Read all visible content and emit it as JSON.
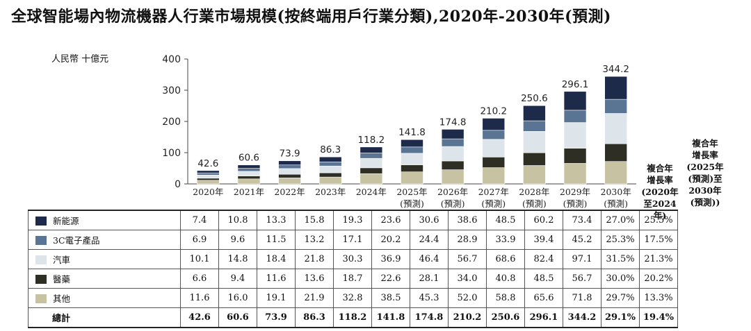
{
  "title": "全球智能場內物流機器人行業市場規模(按終端用戶行業分類),2020年-2030年(預測)",
  "unit": "人民幣 十億元",
  "colors": {
    "新能源": "#1e2a4a",
    "3C電子產品": "#5a7494",
    "汽車": "#dde4ea",
    "醫藥": "#2e2e24",
    "其他": "#c6c2a2"
  },
  "chart_data": {
    "type": "bar",
    "stacked": true,
    "categories": [
      {
        "year": "2020年",
        "note": ""
      },
      {
        "year": "2021年",
        "note": ""
      },
      {
        "year": "2022年",
        "note": ""
      },
      {
        "year": "2023年",
        "note": ""
      },
      {
        "year": "2024年",
        "note": ""
      },
      {
        "year": "2025年",
        "note": "(預測)"
      },
      {
        "year": "2026年",
        "note": "(預測)"
      },
      {
        "year": "2027年",
        "note": "(預測)"
      },
      {
        "year": "2028年",
        "note": "(預測)"
      },
      {
        "year": "2029年",
        "note": "(預測)"
      },
      {
        "year": "2030年",
        "note": "(預測)"
      }
    ],
    "series": [
      {
        "name": "其他",
        "values": [
          11.6,
          16.0,
          19.1,
          21.9,
          32.8,
          38.5,
          45.3,
          52.0,
          58.8,
          65.6,
          71.8
        ]
      },
      {
        "name": "醫藥",
        "values": [
          6.6,
          9.4,
          11.6,
          13.6,
          18.7,
          22.6,
          28.1,
          34.0,
          40.8,
          48.5,
          56.7
        ]
      },
      {
        "name": "汽車",
        "values": [
          10.1,
          14.8,
          18.4,
          21.8,
          30.3,
          36.9,
          46.4,
          56.7,
          68.6,
          82.4,
          97.1
        ]
      },
      {
        "name": "3C電子產品",
        "values": [
          6.9,
          9.6,
          11.5,
          13.2,
          17.1,
          20.2,
          24.4,
          28.9,
          33.9,
          39.4,
          45.2
        ]
      },
      {
        "name": "新能源",
        "values": [
          7.4,
          10.8,
          13.3,
          15.8,
          19.3,
          23.6,
          30.6,
          38.6,
          48.5,
          60.2,
          73.4
        ]
      }
    ],
    "totals": [
      42.6,
      60.6,
      73.9,
      86.3,
      118.2,
      141.8,
      174.8,
      210.2,
      250.6,
      296.1,
      344.2
    ],
    "ylim": [
      0,
      400
    ],
    "yticks": [
      0,
      100,
      200,
      300,
      400
    ],
    "grid": false
  },
  "cagr_headers": {
    "a": [
      "複合年",
      "增長率",
      "(2020年",
      "至2024年)"
    ],
    "b": [
      "複合年",
      "增長率",
      "(2025年",
      "(預測)至",
      "2030年",
      "(預測))"
    ]
  },
  "table": {
    "rows": [
      {
        "label": "新能源",
        "values": [
          "7.4",
          "10.8",
          "13.3",
          "15.8",
          "19.3",
          "23.6",
          "30.6",
          "38.6",
          "48.5",
          "60.2",
          "73.4"
        ],
        "cagr_a": "27.0%",
        "cagr_b": "25.5%"
      },
      {
        "label": "3C電子產品",
        "values": [
          "6.9",
          "9.6",
          "11.5",
          "13.2",
          "17.1",
          "20.2",
          "24.4",
          "28.9",
          "33.9",
          "39.4",
          "45.2"
        ],
        "cagr_a": "25.3%",
        "cagr_b": "17.5%"
      },
      {
        "label": "汽車",
        "values": [
          "10.1",
          "14.8",
          "18.4",
          "21.8",
          "30.3",
          "36.9",
          "46.4",
          "56.7",
          "68.6",
          "82.4",
          "97.1"
        ],
        "cagr_a": "31.5%",
        "cagr_b": "21.3%"
      },
      {
        "label": "醫藥",
        "values": [
          "6.6",
          "9.4",
          "11.6",
          "13.6",
          "18.7",
          "22.6",
          "28.1",
          "34.0",
          "40.8",
          "48.5",
          "56.7"
        ],
        "cagr_a": "30.0%",
        "cagr_b": "20.2%"
      },
      {
        "label": "其他",
        "values": [
          "11.6",
          "16.0",
          "19.1",
          "21.9",
          "32.8",
          "38.5",
          "45.3",
          "52.0",
          "58.8",
          "65.6",
          "71.8"
        ],
        "cagr_a": "29.7%",
        "cagr_b": "13.3%"
      }
    ],
    "total": {
      "label": "總計",
      "values": [
        "42.6",
        "60.6",
        "73.9",
        "86.3",
        "118.2",
        "141.8",
        "174.8",
        "210.2",
        "250.6",
        "296.1",
        "344.2"
      ],
      "cagr_a": "29.1%",
      "cagr_b": "19.4%"
    }
  }
}
